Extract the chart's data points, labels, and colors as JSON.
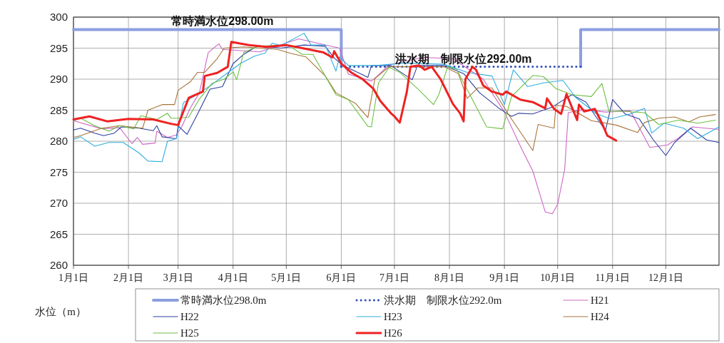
{
  "chart_data": {
    "type": "line",
    "ylabel": "水位（m）",
    "annotations": [
      {
        "text": "常時満水位298.00m",
        "x": "--03-26",
        "y": 298
      },
      {
        "text": "洪水期　制限水位292.00m",
        "x": "--08-09",
        "y": 292
      }
    ],
    "xlim": [
      "--01-01",
      "--12-31"
    ],
    "xticks": [
      {
        "value": "--01-01",
        "label": "1月1日"
      },
      {
        "value": "--02-01",
        "label": "2月1日"
      },
      {
        "value": "--03-01",
        "label": "3月1日"
      },
      {
        "value": "--04-01",
        "label": "4月1日"
      },
      {
        "value": "--05-01",
        "label": "5月1日"
      },
      {
        "value": "--06-01",
        "label": "6月1日"
      },
      {
        "value": "--07-01",
        "label": "7月1日"
      },
      {
        "value": "--08-01",
        "label": "8月1日"
      },
      {
        "value": "--09-01",
        "label": "9月1日"
      },
      {
        "value": "--10-01",
        "label": "10月1日"
      },
      {
        "value": "--11-01",
        "label": "11月1日"
      },
      {
        "value": "--12-01",
        "label": "12月1日"
      }
    ],
    "ylim": [
      260,
      300
    ],
    "yticks": [
      260,
      265,
      270,
      275,
      280,
      285,
      290,
      295,
      300
    ],
    "grid": true,
    "legend": "bottom",
    "series": [
      {
        "name": "常時満水位298.0m",
        "color": "#8c9ee0",
        "line_style": "solid",
        "x": [
          "--01-01",
          "--06-01",
          "--06-01",
          "--08-01",
          "--10-14",
          "--10-14",
          "--12-31"
        ],
        "values": [
          298,
          298,
          292,
          null,
          292,
          298,
          298
        ]
      },
      {
        "name": "洪水期　制限水位292.0m",
        "color": "#3050b8",
        "line_style": "dotted",
        "x": [
          "--06-01",
          "--10-14"
        ],
        "values": [
          292,
          292
        ]
      },
      {
        "name": "H21",
        "color": "#cc66c4",
        "x": [
          "--01-01",
          "--01-17",
          "--01-27",
          "--02-03",
          "--02-06",
          "--02-09",
          "--02-16",
          "--02-17",
          "--02-23",
          "--02-28",
          "--03-03",
          "--03-08",
          "--03-13",
          "--03-18",
          "--03-24",
          "--03-26",
          "--04-16",
          "--05-08",
          "--05-31",
          "--06-05",
          "--06-18",
          "--06-21",
          "--06-28",
          "--07-17",
          "--08-03",
          "--08-20",
          "--09-01",
          "--09-11",
          "--09-17",
          "--09-24",
          "--09-28",
          "--10-01",
          "--10-05",
          "--10-07",
          "--10-15",
          "--10-28",
          "--11-11",
          "--11-22",
          "--12-02",
          "--12-08",
          "--12-16",
          "--12-31"
        ],
        "values": [
          283.3,
          282,
          282.2,
          279.6,
          280.6,
          279.5,
          279.7,
          281.6,
          280.6,
          281,
          282.3,
          285.4,
          287.8,
          294.3,
          295.7,
          294.8,
          294.4,
          296.5,
          295,
          290.8,
          289.7,
          290.4,
          292.3,
          293.5,
          293.3,
          290,
          284.7,
          278.6,
          275.2,
          268.6,
          268.3,
          269.8,
          275.5,
          284.6,
          285.1,
          284.7,
          284.9,
          279,
          279.4,
          280.5,
          282.3,
          281.9
        ]
      },
      {
        "name": "H22",
        "color": "#2f3f9e",
        "x": [
          "--01-01",
          "--01-05",
          "--01-13",
          "--01-18",
          "--01-24",
          "--01-28",
          "--02-07",
          "--02-15",
          "--02-17",
          "--02-20",
          "--02-28",
          "--03-01",
          "--03-06",
          "--03-12",
          "--03-19",
          "--03-26",
          "--04-01",
          "--04-07",
          "--04-15",
          "--04-28",
          "--05-11",
          "--05-23",
          "--05-28",
          "--06-02",
          "--06-16",
          "--06-18",
          "--06-29",
          "--07-11",
          "--07-14",
          "--07-29",
          "--08-09",
          "--08-18",
          "--08-29",
          "--09-05",
          "--09-09",
          "--09-17",
          "--09-28",
          "--10-09",
          "--10-17",
          "--10-28",
          "--11-01",
          "--11-08",
          "--11-16",
          "--11-24",
          "--12-01",
          "--12-06",
          "--12-15",
          "--12-24",
          "--12-31"
        ],
        "values": [
          281.8,
          282.1,
          281.3,
          280.9,
          281.3,
          282.3,
          282.1,
          281.7,
          282.5,
          280.7,
          280.4,
          282.5,
          281.1,
          284.4,
          288.4,
          288.8,
          292.5,
          294,
          295.4,
          295,
          295.5,
          295.3,
          293.4,
          292.2,
          290.3,
          292.2,
          292.2,
          289.9,
          292.2,
          292.2,
          290.9,
          287.8,
          285.3,
          284,
          284.5,
          284.4,
          285.5,
          287.5,
          286.3,
          281.7,
          286.7,
          284.4,
          283.6,
          280.2,
          277.7,
          279.8,
          282.1,
          280.2,
          279.8
        ]
      },
      {
        "name": "H23",
        "color": "#30aee0",
        "x": [
          "--01-01",
          "--01-05",
          "--01-13",
          "--01-21",
          "--01-29",
          "--02-07",
          "--02-12",
          "--02-20",
          "--02-23",
          "--02-28",
          "--03-04",
          "--03-11",
          "--03-19",
          "--03-26",
          "--04-05",
          "--04-13",
          "--04-19",
          "--04-23",
          "--04-28",
          "--05-11",
          "--05-15",
          "--05-23",
          "--05-29",
          "--05-31",
          "--06-05",
          "--06-21",
          "--07-07",
          "--07-29",
          "--08-11",
          "--08-25",
          "--09-01",
          "--09-06",
          "--09-14",
          "--09-23",
          "--10-04",
          "--10-11",
          "--10-23",
          "--10-31",
          "--11-11",
          "--11-19",
          "--11-23",
          "--11-30",
          "--12-11",
          "--12-19",
          "--12-31"
        ],
        "values": [
          280.3,
          280.7,
          279.2,
          279.8,
          279.8,
          278.1,
          276.8,
          276.7,
          280,
          280.4,
          286.2,
          287.4,
          288.9,
          290.4,
          292.5,
          293.7,
          294.2,
          295.8,
          295.4,
          297.4,
          295.5,
          295.5,
          291.3,
          293.6,
          292.2,
          292.2,
          292.6,
          292.4,
          291.1,
          290.5,
          285.9,
          291.5,
          288.8,
          289.4,
          289.8,
          287.1,
          284.4,
          283.6,
          284.4,
          285.3,
          281.3,
          282.9,
          282.1,
          280.4,
          282.3
        ]
      },
      {
        "name": "H24",
        "color": "#a8743a",
        "x": [
          "--01-01",
          "--01-05",
          "--01-17",
          "--01-27",
          "--02-09",
          "--02-12",
          "--02-20",
          "--02-27",
          "--03-01",
          "--03-08",
          "--03-12",
          "--03-16",
          "--03-23",
          "--03-27",
          "--04-07",
          "--04-26",
          "--05-03",
          "--05-12",
          "--05-23",
          "--05-29",
          "--06-09",
          "--06-16",
          "--06-20",
          "--06-28",
          "--07-29",
          "--08-06",
          "--08-11",
          "--08-17",
          "--08-25",
          "--09-04",
          "--09-17",
          "--09-20",
          "--09-29",
          "--09-30",
          "--10-06",
          "--10-20",
          "--11-03",
          "--11-15",
          "--11-19",
          "--11-27",
          "--12-06",
          "--12-14",
          "--12-20",
          "--12-29"
        ],
        "values": [
          280.6,
          280.9,
          282.1,
          282.5,
          282.1,
          285,
          285.9,
          285.9,
          288.2,
          289.6,
          291.1,
          291.1,
          293.3,
          295,
          295.2,
          294.8,
          294.2,
          293.6,
          290.5,
          287.8,
          286.1,
          283.8,
          290.1,
          292,
          292,
          290.9,
          286.9,
          288.6,
          288.6,
          284,
          278.5,
          282.7,
          282.1,
          285.8,
          285.6,
          283.3,
          282.6,
          281.4,
          283,
          283.7,
          283.9,
          283.1,
          283.9,
          284.3
        ]
      },
      {
        "name": "H25",
        "color": "#6cc040",
        "x": [
          "--01-01",
          "--01-05",
          "--01-13",
          "--01-21",
          "--01-27",
          "--02-04",
          "--02-08",
          "--02-17",
          "--02-23",
          "--02-25",
          "--03-01",
          "--03-07",
          "--03-13",
          "--03-20",
          "--03-27",
          "--04-01",
          "--04-03",
          "--04-07",
          "--04-15",
          "--05-02",
          "--05-10",
          "--05-16",
          "--05-29",
          "--06-05",
          "--06-16",
          "--06-18",
          "--06-22",
          "--06-28",
          "--07-04",
          "--07-15",
          "--07-23",
          "--07-26",
          "--07-31",
          "--08-05",
          "--08-22",
          "--08-31",
          "--09-05",
          "--09-17",
          "--09-23",
          "--09-30",
          "--10-09",
          "--10-20",
          "--10-26",
          "--10-30",
          "--11-08",
          "--11-19",
          "--11-27",
          "--12-08",
          "--12-19",
          "--12-29"
        ],
        "values": [
          283.3,
          283.7,
          282.5,
          281.6,
          282.5,
          282,
          284.1,
          283.5,
          284.5,
          283.7,
          283.7,
          283.9,
          286.8,
          289.3,
          290,
          291.2,
          289.9,
          294.3,
          295.3,
          295.5,
          294,
          294,
          287.5,
          286.7,
          282.4,
          282.3,
          289.4,
          291.9,
          291.1,
          288.2,
          285.9,
          287.5,
          292,
          291.6,
          282.3,
          282,
          287.2,
          290.6,
          290.4,
          288.5,
          287.5,
          287.2,
          289.3,
          284.8,
          284.8,
          284.6,
          282.7,
          283.4,
          282.9,
          283.4
        ]
      },
      {
        "name": "H26",
        "color": "#ee2222",
        "x": [
          "--01-01",
          "--01-10",
          "--01-20",
          "--02-01",
          "--02-15",
          "--02-25",
          "--03-01",
          "--03-07",
          "--03-15",
          "--03-16",
          "--03-23",
          "--03-29",
          "--03-31",
          "--04-10",
          "--04-20",
          "--05-01",
          "--05-10",
          "--05-22",
          "--05-27",
          "--05-28",
          "--06-01",
          "--06-07",
          "--06-13",
          "--06-19",
          "--06-23",
          "--06-29",
          "--07-01",
          "--07-04",
          "--07-08",
          "--07-10",
          "--07-15",
          "--07-18",
          "--07-22",
          "--07-27",
          "--08-03",
          "--08-07",
          "--08-09",
          "--08-10",
          "--08-14",
          "--08-16",
          "--08-20",
          "--08-25",
          "--08-31",
          "--09-02",
          "--09-10",
          "--09-17",
          "--09-24",
          "--09-25",
          "--09-29",
          "--10-03",
          "--10-06",
          "--10-12",
          "--10-13",
          "--10-16",
          "--10-22",
          "--10-26",
          "--10-29",
          "--11-03"
        ],
        "values": [
          283.5,
          284,
          283.2,
          283.6,
          283.5,
          282.8,
          282.6,
          287,
          288,
          290.5,
          291,
          292,
          296,
          295.5,
          295.2,
          295.5,
          295,
          294.3,
          293.5,
          294.5,
          292.5,
          291,
          290,
          288.5,
          286.5,
          284.5,
          284,
          283,
          288,
          292,
          292.2,
          291.5,
          292,
          290,
          286,
          284.5,
          283.2,
          290,
          292,
          291.5,
          289,
          288,
          287.5,
          288,
          286.7,
          286.3,
          285.3,
          286.9,
          285.2,
          284.4,
          287.6,
          283.4,
          285.9,
          284.8,
          285.2,
          282.9,
          280.9,
          280.1
        ]
      }
    ]
  }
}
